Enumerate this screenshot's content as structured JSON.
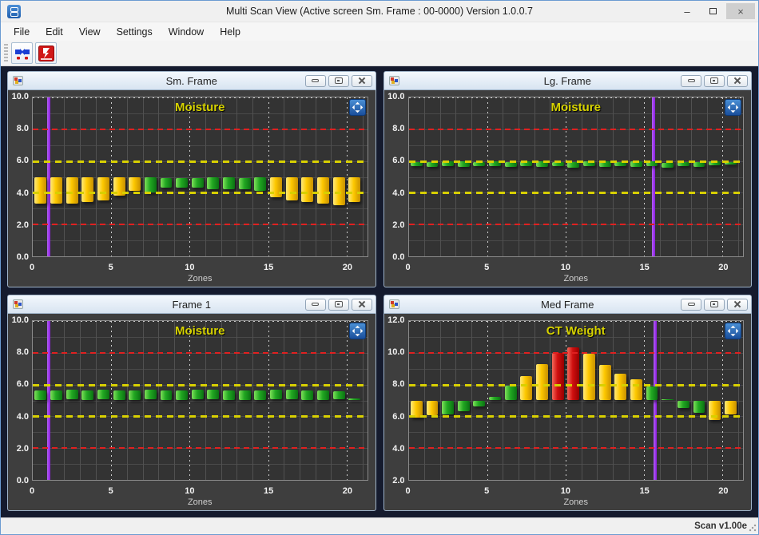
{
  "window": {
    "title": "Multi Scan View (Active screen Sm. Frame : 00-0000) Version 1.0.0.7",
    "menu": [
      "File",
      "Edit",
      "View",
      "Settings",
      "Window",
      "Help"
    ],
    "toolbar_icons": [
      "connect-icon",
      "disconnect-icon"
    ],
    "status_right": "Scan v1.00e",
    "controls": {
      "minimize": "–",
      "maximize": "",
      "close": "×"
    }
  },
  "colors": {
    "mdi_background": "#151b2e",
    "panel_background": "#3e3e3e",
    "plot_background": "#333333",
    "bar_yellow": "#fdc800",
    "bar_green": "#22a822",
    "bar_red": "#d01010",
    "ref_red": "#e02020",
    "ref_yellow": "#d8d000",
    "cursor_purple": "#9128e8",
    "plot_title_yellow": "#d6d200"
  },
  "chart_data": [
    {
      "type": "bar",
      "window_title": "Sm. Frame",
      "title": "Moisture",
      "xlabel": "Zones",
      "ylim": [
        0,
        10
      ],
      "xlim": [
        0,
        21.3
      ],
      "yticks": [
        10,
        8,
        6,
        4,
        2,
        0
      ],
      "xticks": [
        0,
        5,
        10,
        15,
        20
      ],
      "ref_lines": [
        {
          "y": 8,
          "c": "r"
        },
        {
          "y": 6,
          "c": "y"
        },
        {
          "y": 4,
          "c": "y"
        },
        {
          "y": 2,
          "c": "r"
        }
      ],
      "cursor_x": 1,
      "bars": [
        [
          3.3,
          5.0,
          "y"
        ],
        [
          3.3,
          5.0,
          "y"
        ],
        [
          3.3,
          5.0,
          "y"
        ],
        [
          3.4,
          5.0,
          "y"
        ],
        [
          3.5,
          5.0,
          "y"
        ],
        [
          3.8,
          5.0,
          "y"
        ],
        [
          4.1,
          5.0,
          "y"
        ],
        [
          4.0,
          5.0,
          "g"
        ],
        [
          4.3,
          4.9,
          "g"
        ],
        [
          4.3,
          4.9,
          "g"
        ],
        [
          4.3,
          4.9,
          "g"
        ],
        [
          4.2,
          5.0,
          "g"
        ],
        [
          4.2,
          5.0,
          "g"
        ],
        [
          4.2,
          4.9,
          "g"
        ],
        [
          4.1,
          5.0,
          "g"
        ],
        [
          3.7,
          5.0,
          "y"
        ],
        [
          3.5,
          5.0,
          "y"
        ],
        [
          3.4,
          5.0,
          "y"
        ],
        [
          3.3,
          5.0,
          "y"
        ],
        [
          3.2,
          5.0,
          "y"
        ],
        [
          3.4,
          5.0,
          "y"
        ]
      ]
    },
    {
      "type": "bar",
      "window_title": "Lg. Frame",
      "title": "Moisture",
      "xlabel": "Zones",
      "ylim": [
        0,
        10
      ],
      "xlim": [
        0,
        21.3
      ],
      "yticks": [
        10,
        8,
        6,
        4,
        2,
        0
      ],
      "xticks": [
        0,
        5,
        10,
        15,
        20
      ],
      "ref_lines": [
        {
          "y": 8,
          "c": "r"
        },
        {
          "y": 6,
          "c": "y"
        },
        {
          "y": 4,
          "c": "y"
        },
        {
          "y": 2,
          "c": "r"
        }
      ],
      "cursor_x": 15.6,
      "bars": [
        [
          5.7,
          5.95,
          "g"
        ],
        [
          5.65,
          5.95,
          "g"
        ],
        [
          5.7,
          6.0,
          "g"
        ],
        [
          5.65,
          6.0,
          "g"
        ],
        [
          5.7,
          5.95,
          "g"
        ],
        [
          5.7,
          6.0,
          "g"
        ],
        [
          5.65,
          5.95,
          "g"
        ],
        [
          5.7,
          6.0,
          "g"
        ],
        [
          5.65,
          6.0,
          "g"
        ],
        [
          5.7,
          5.95,
          "g"
        ],
        [
          5.6,
          5.95,
          "g"
        ],
        [
          5.7,
          6.0,
          "g"
        ],
        [
          5.65,
          6.0,
          "g"
        ],
        [
          5.7,
          5.95,
          "g"
        ],
        [
          5.65,
          6.0,
          "g"
        ],
        [
          5.7,
          6.0,
          "g"
        ],
        [
          5.6,
          5.9,
          "g"
        ],
        [
          5.7,
          5.95,
          "g"
        ],
        [
          5.65,
          5.95,
          "g"
        ],
        [
          5.75,
          6.0,
          "g"
        ],
        [
          5.8,
          5.95,
          "g"
        ]
      ]
    },
    {
      "type": "bar",
      "window_title": "Frame 1",
      "title": "Moisture",
      "xlabel": "Zones",
      "ylim": [
        0,
        10
      ],
      "xlim": [
        0,
        21.3
      ],
      "yticks": [
        10,
        8,
        6,
        4,
        2,
        0
      ],
      "xticks": [
        0,
        5,
        10,
        15,
        20
      ],
      "ref_lines": [
        {
          "y": 8,
          "c": "r"
        },
        {
          "y": 6,
          "c": "y"
        },
        {
          "y": 4,
          "c": "y"
        },
        {
          "y": 2,
          "c": "r"
        }
      ],
      "cursor_x": 1,
      "bars": [
        [
          5.05,
          5.65,
          "g"
        ],
        [
          5.05,
          5.65,
          "g"
        ],
        [
          5.05,
          5.7,
          "g"
        ],
        [
          5.05,
          5.65,
          "g"
        ],
        [
          5.05,
          5.7,
          "g"
        ],
        [
          5.05,
          5.65,
          "g"
        ],
        [
          5.05,
          5.65,
          "g"
        ],
        [
          5.05,
          5.7,
          "g"
        ],
        [
          5.05,
          5.65,
          "g"
        ],
        [
          5.05,
          5.65,
          "g"
        ],
        [
          5.05,
          5.7,
          "g"
        ],
        [
          5.05,
          5.7,
          "g"
        ],
        [
          5.05,
          5.65,
          "g"
        ],
        [
          5.05,
          5.65,
          "g"
        ],
        [
          5.05,
          5.65,
          "g"
        ],
        [
          5.05,
          5.7,
          "g"
        ],
        [
          5.05,
          5.7,
          "g"
        ],
        [
          5.05,
          5.65,
          "g"
        ],
        [
          5.05,
          5.65,
          "g"
        ],
        [
          5.05,
          5.6,
          "g"
        ],
        [
          5.0,
          5.15,
          "g"
        ]
      ]
    },
    {
      "type": "bar",
      "window_title": "Med Frame",
      "title": "CT Weight",
      "xlabel": "Zones",
      "ylim": [
        2,
        12
      ],
      "xlim": [
        0,
        21.3
      ],
      "yticks": [
        12,
        10,
        8,
        6,
        4,
        2
      ],
      "xticks": [
        0,
        5,
        10,
        15,
        20
      ],
      "ref_lines": [
        {
          "y": 10,
          "c": "r"
        },
        {
          "y": 8,
          "c": "y"
        },
        {
          "y": 6,
          "c": "y"
        },
        {
          "y": 4,
          "c": "r"
        }
      ],
      "cursor_x": 15.7,
      "bars": [
        [
          5.9,
          7.0,
          "y"
        ],
        [
          6.05,
          7.0,
          "y"
        ],
        [
          6.1,
          7.0,
          "g"
        ],
        [
          6.3,
          7.0,
          "g"
        ],
        [
          6.6,
          7.0,
          "g"
        ],
        [
          7.0,
          7.25,
          "g"
        ],
        [
          7.0,
          7.95,
          "g"
        ],
        [
          7.0,
          8.55,
          "y"
        ],
        [
          7.0,
          9.3,
          "y"
        ],
        [
          7.0,
          10.0,
          "r"
        ],
        [
          7.0,
          10.35,
          "r"
        ],
        [
          7.0,
          9.95,
          "y"
        ],
        [
          7.0,
          9.25,
          "y"
        ],
        [
          7.0,
          8.7,
          "y"
        ],
        [
          7.0,
          8.35,
          "y"
        ],
        [
          7.0,
          7.9,
          "g"
        ],
        [
          7.0,
          7.1,
          "g"
        ],
        [
          6.5,
          7.0,
          "g"
        ],
        [
          6.2,
          7.0,
          "g"
        ],
        [
          5.75,
          7.0,
          "y"
        ],
        [
          6.1,
          7.0,
          "y"
        ]
      ]
    }
  ]
}
